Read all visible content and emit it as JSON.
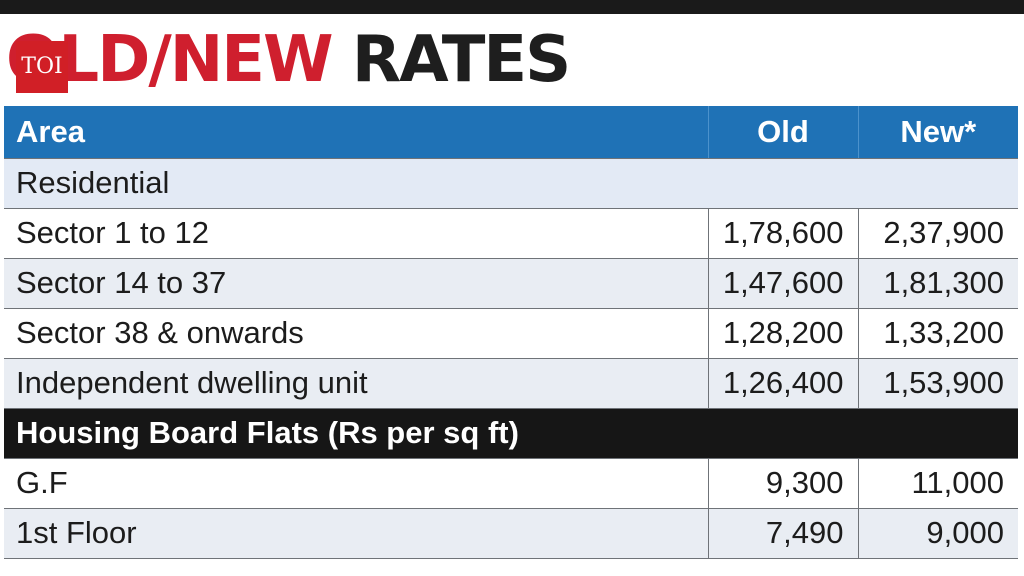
{
  "headline": {
    "part1": "OLD/NEW",
    "part2": " RATES"
  },
  "logo": {
    "text": "TOI",
    "color": "#d11f26"
  },
  "colors": {
    "header_blue": "#1f72b6",
    "headline_red": "#cf1f2e",
    "section_black": "#161616"
  },
  "table": {
    "headers": {
      "area": "Area",
      "old": "Old",
      "new": "New*"
    },
    "rows": [
      {
        "area": "Residential",
        "old": "",
        "new": ""
      },
      {
        "area": "Sector 1 to 12",
        "old": "1,78,600",
        "new": "2,37,900"
      },
      {
        "area": "Sector 14 to 37",
        "old": "1,47,600",
        "new": "1,81,300"
      },
      {
        "area": "Sector 38 & onwards",
        "old": "1,28,200",
        "new": "1,33,200"
      },
      {
        "area": "Independent dwelling unit",
        "old": "1,26,400",
        "new": "1,53,900"
      },
      {
        "area": "Housing Board Flats (Rs per sq ft)",
        "old": "",
        "new": ""
      },
      {
        "area": "G.F",
        "old": "9,300",
        "new": "11,000"
      },
      {
        "area": "1st Floor",
        "old": "7,490",
        "new": "9,000"
      }
    ]
  }
}
